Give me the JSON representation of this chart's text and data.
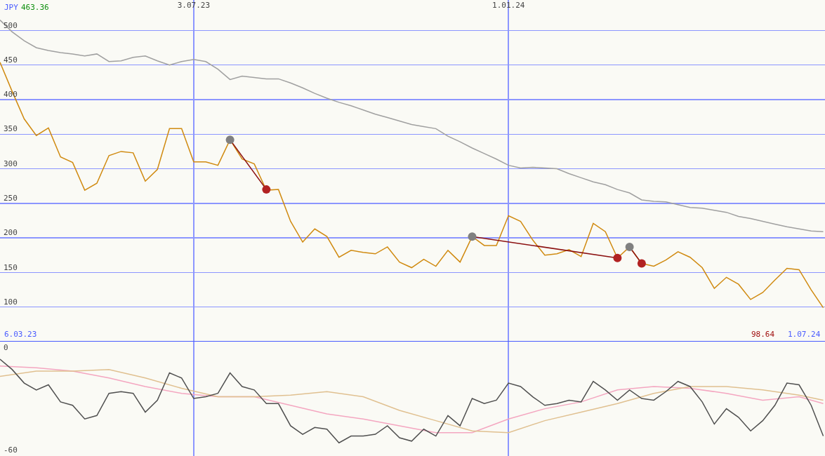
{
  "chart_data": [
    {
      "type": "line",
      "x": [
        "2023-03-13",
        "2023-03-20",
        "2023-03-27",
        "2023-04-03",
        "2023-04-10",
        "2023-04-17",
        "2023-04-24",
        "2023-05-01",
        "2023-05-08",
        "2023-05-15",
        "2023-05-22",
        "2023-05-29",
        "2023-06-05",
        "2023-06-12",
        "2023-06-19",
        "2023-06-26",
        "2023-07-03",
        "2023-07-10",
        "2023-07-17",
        "2023-07-24",
        "2023-07-31",
        "2023-08-07",
        "2023-08-14",
        "2023-08-21",
        "2023-08-28",
        "2023-09-04",
        "2023-09-11",
        "2023-09-18",
        "2023-09-25",
        "2023-10-02",
        "2023-10-09",
        "2023-10-16",
        "2023-10-23",
        "2023-10-30",
        "2023-11-06",
        "2023-11-13",
        "2023-11-20",
        "2023-11-27",
        "2023-12-04",
        "2023-12-11",
        "2023-12-18",
        "2023-12-25",
        "2024-01-01",
        "2024-01-08",
        "2024-01-15",
        "2024-01-22",
        "2024-01-29",
        "2024-02-05",
        "2024-02-12",
        "2024-02-19",
        "2024-02-26",
        "2024-03-04",
        "2024-03-11",
        "2024-03-18",
        "2024-03-25",
        "2024-04-01",
        "2024-04-08",
        "2024-04-15",
        "2024-04-22",
        "2024-04-29",
        "2024-05-06",
        "2024-05-13",
        "2024-05-20",
        "2024-05-27",
        "2024-06-03",
        "2024-06-10",
        "2024-06-17",
        "2024-06-24",
        "2024-07-01"
      ],
      "series": [
        {
          "color": "#a0a0a0",
          "values": [
            515,
            498,
            485,
            475,
            471,
            468,
            466,
            463,
            466,
            455,
            456,
            461,
            463,
            456,
            450,
            455,
            458,
            455,
            444,
            429,
            434,
            432,
            430,
            430,
            424,
            417,
            409,
            402,
            396,
            391,
            385,
            379,
            374,
            369,
            364,
            361,
            358,
            347,
            339,
            330,
            322,
            314,
            305,
            301,
            302,
            301,
            300,
            293,
            287,
            281,
            277,
            270,
            265,
            255,
            253,
            252,
            248,
            244,
            243,
            240,
            237,
            231,
            228,
            224,
            220,
            216,
            213,
            210,
            209
          ]
        },
        {
          "color": "#d08a10",
          "values": [
            454,
            412,
            372,
            348,
            359,
            317,
            309,
            269,
            279,
            319,
            325,
            323,
            282,
            299,
            358,
            358,
            310,
            310,
            305,
            342,
            314,
            307,
            269,
            270,
            224,
            194,
            213,
            202,
            172,
            182,
            179,
            177,
            187,
            165,
            157,
            169,
            159,
            182,
            165,
            202,
            189,
            189,
            232,
            224,
            197,
            175,
            177,
            183,
            173,
            221,
            209,
            171,
            187,
            163,
            159,
            168,
            180,
            172,
            157,
            127,
            143,
            133,
            111,
            121,
            139,
            156,
            154,
            125,
            99
          ]
        },
        {
          "color": "#8b1010",
          "marker": "circle",
          "colors": [
            "#808080",
            "#b22222"
          ],
          "x": [
            "2023-07-24",
            "2023-08-14"
          ],
          "values": [
            342,
            270
          ]
        },
        {
          "color": "#8b1010",
          "marker": "circle",
          "colors": [
            "#808080",
            "#b22222"
          ],
          "x": [
            "2023-12-11",
            "2024-03-04"
          ],
          "values": [
            202,
            171
          ]
        },
        {
          "color": "#8b1010",
          "marker": "circle",
          "colors": [
            "#808080",
            "#b22222"
          ],
          "x": [
            "2024-03-11",
            "2024-03-18"
          ],
          "values": [
            187,
            163
          ]
        }
      ],
      "xlim": [
        "2023-03-13",
        "2024-07-02"
      ],
      "xticks": [
        {
          "value": "2023-07-03",
          "label": "3.07.23"
        },
        {
          "value": "2024-01-01",
          "label": "1.01.24"
        }
      ],
      "ylim": [
        50,
        544
      ],
      "yticks": [
        100,
        150,
        200,
        250,
        300,
        350,
        400,
        450,
        500
      ],
      "grid": true,
      "annotations": [
        "JPY",
        "463.36",
        "98.64",
        "6.03.23",
        "1.07.24"
      ]
    },
    {
      "type": "line",
      "x": [
        "2023-03-13",
        "2023-03-20",
        "2023-03-27",
        "2023-04-03",
        "2023-04-10",
        "2023-04-17",
        "2023-04-24",
        "2023-05-01",
        "2023-05-08",
        "2023-05-15",
        "2023-05-22",
        "2023-05-29",
        "2023-06-05",
        "2023-06-12",
        "2023-06-19",
        "2023-06-26",
        "2023-07-03",
        "2023-07-10",
        "2023-07-17",
        "2023-07-24",
        "2023-07-31",
        "2023-08-07",
        "2023-08-14",
        "2023-08-21",
        "2023-08-28",
        "2023-09-04",
        "2023-09-11",
        "2023-09-18",
        "2023-09-25",
        "2023-10-02",
        "2023-10-09",
        "2023-10-16",
        "2023-10-23",
        "2023-10-30",
        "2023-11-06",
        "2023-11-13",
        "2023-11-20",
        "2023-11-27",
        "2023-12-04",
        "2023-12-11",
        "2023-12-18",
        "2023-12-25",
        "2024-01-01",
        "2024-01-08",
        "2024-01-15",
        "2024-01-22",
        "2024-01-29",
        "2024-02-05",
        "2024-02-12",
        "2024-02-19",
        "2024-02-26",
        "2024-03-04",
        "2024-03-11",
        "2024-03-18",
        "2024-03-25",
        "2024-04-01",
        "2024-04-08",
        "2024-04-15",
        "2024-04-22",
        "2024-04-29",
        "2024-05-06",
        "2024-05-13",
        "2024-05-20",
        "2024-05-27",
        "2024-06-03",
        "2024-06-10",
        "2024-06-17",
        "2024-06-24",
        "2024-07-01"
      ],
      "series": [
        {
          "color": "#f4a6c0",
          "x": [
            "2023-03-13",
            "2023-04-03",
            "2023-04-24",
            "2023-05-15",
            "2023-06-05",
            "2023-06-26",
            "2023-07-17",
            "2023-08-07",
            "2023-08-28",
            "2023-09-18",
            "2023-10-09",
            "2023-10-30",
            "2023-11-20",
            "2023-12-11",
            "2024-01-01",
            "2024-01-22",
            "2024-02-12",
            "2024-03-04",
            "2024-03-25",
            "2024-04-15",
            "2024-05-06",
            "2024-05-27",
            "2024-06-17",
            "2024-07-01"
          ],
          "values": [
            -11,
            -12,
            -14,
            -18,
            -23,
            -27,
            -29,
            -29,
            -34,
            -39,
            -42,
            -46,
            -50,
            -50,
            -42,
            -36,
            -32,
            -25,
            -23,
            -24,
            -27,
            -31,
            -29,
            -33
          ]
        },
        {
          "color": "#e0c090",
          "x": [
            "2023-03-13",
            "2023-04-03",
            "2023-04-24",
            "2023-05-15",
            "2023-06-05",
            "2023-06-26",
            "2023-07-17",
            "2023-08-07",
            "2023-08-28",
            "2023-09-18",
            "2023-10-09",
            "2023-10-30",
            "2023-11-20",
            "2023-12-11",
            "2024-01-01",
            "2024-01-22",
            "2024-02-12",
            "2024-03-04",
            "2024-03-25",
            "2024-04-15",
            "2024-05-06",
            "2024-05-27",
            "2024-06-17",
            "2024-07-01"
          ],
          "values": [
            -17,
            -14,
            -14,
            -13,
            -18,
            -24,
            -29,
            -29,
            -28,
            -26,
            -29,
            -37,
            -43,
            -49,
            -50,
            -43,
            -38,
            -33,
            -27,
            -23,
            -23,
            -25,
            -28,
            -31
          ]
        },
        {
          "color": "#505050",
          "values": [
            -7,
            -13,
            -21,
            -25,
            -22,
            -32,
            -34,
            -42,
            -40,
            -27,
            -26,
            -27,
            -38,
            -31,
            -15,
            -18,
            -30,
            -29,
            -27,
            -15,
            -23,
            -25,
            -33,
            -33,
            -46,
            -51,
            -47,
            -48,
            -56,
            -52,
            -52,
            -51,
            -46,
            -53,
            -55,
            -48,
            -52,
            -40,
            -46,
            -30,
            -33,
            -31,
            -21,
            -23,
            -29,
            -34,
            -33,
            -31,
            -32,
            -20,
            -25,
            -31,
            -25,
            -30,
            -31,
            -26,
            -20,
            -23,
            -32,
            -45,
            -36,
            -41,
            -49,
            -43,
            -34,
            -21,
            -22,
            -34,
            -52
          ]
        }
      ],
      "xlim": [
        "2023-03-13",
        "2024-07-02"
      ],
      "xticks": [
        {
          "value": "2023-07-03",
          "label": null
        },
        {
          "value": "2024-01-01",
          "label": null
        }
      ],
      "ylim": [
        -63.7,
        3.3
      ],
      "yticks": [
        0,
        -60
      ],
      "grid": "x",
      "tick_labels": "y"
    }
  ]
}
